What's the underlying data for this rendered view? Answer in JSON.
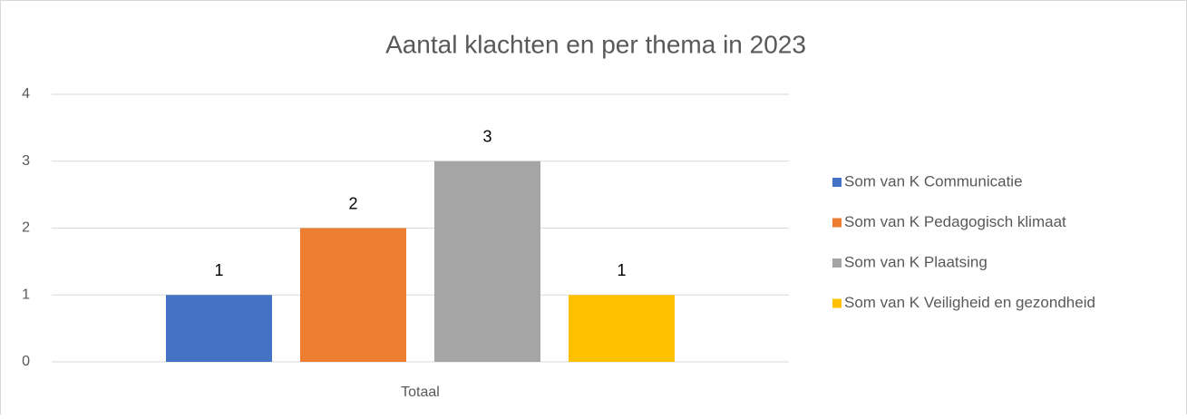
{
  "chart_data": {
    "type": "bar",
    "title": "Aantal klachten en per thema in 2023",
    "categories": [
      "Totaal"
    ],
    "series": [
      {
        "name": "Som van K Communicatie",
        "color": "#4472c4",
        "values": [
          1
        ]
      },
      {
        "name": "Som van K Pedagogisch klimaat",
        "color": "#ed7d31",
        "values": [
          2
        ]
      },
      {
        "name": "Som van K Plaatsing",
        "color": "#a5a5a5",
        "values": [
          3
        ]
      },
      {
        "name": "Som van K Veiligheid en gezondheid",
        "color": "#ffc000",
        "values": [
          1
        ]
      }
    ],
    "ylim": [
      0,
      4
    ],
    "yticks": [
      0,
      1,
      2,
      3,
      4
    ],
    "grid": true,
    "data_labels": true,
    "legend": "right"
  }
}
